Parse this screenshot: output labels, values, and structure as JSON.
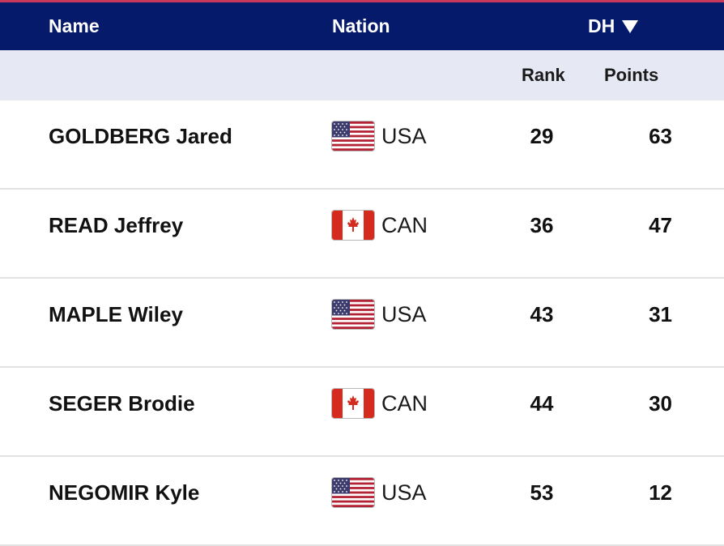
{
  "colors": {
    "header_bg": "#061a6b",
    "subheader_bg": "#e6e8f4",
    "accent_line": "#c8385a"
  },
  "header": {
    "name": "Name",
    "nation": "Nation",
    "discipline": "DH",
    "sort_icon": "sort-down-triangle-icon"
  },
  "subheader": {
    "rank": "Rank",
    "points": "Points"
  },
  "rows": [
    {
      "name": "GOLDBERG Jared",
      "flag": "usa-flag-icon",
      "nation": "USA",
      "rank": "29",
      "points": "63"
    },
    {
      "name": "READ Jeffrey",
      "flag": "canada-flag-icon",
      "nation": "CAN",
      "rank": "36",
      "points": "47"
    },
    {
      "name": "MAPLE Wiley",
      "flag": "usa-flag-icon",
      "nation": "USA",
      "rank": "43",
      "points": "31"
    },
    {
      "name": "SEGER Brodie",
      "flag": "canada-flag-icon",
      "nation": "CAN",
      "rank": "44",
      "points": "30"
    },
    {
      "name": "NEGOMIR Kyle",
      "flag": "usa-flag-icon",
      "nation": "USA",
      "rank": "53",
      "points": "12"
    }
  ]
}
